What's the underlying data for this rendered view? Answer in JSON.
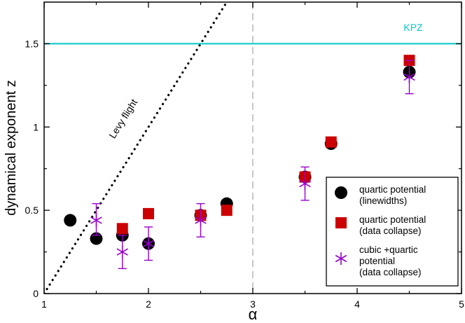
{
  "chart_data": {
    "type": "scatter",
    "title": "",
    "xlabel": "α",
    "ylabel": "dynamical exponent z",
    "xlim": [
      1,
      5
    ],
    "ylim": [
      0,
      1.75
    ],
    "x_ticks": [
      1,
      2,
      3,
      4,
      5
    ],
    "x_tick_labels": [
      "1",
      "2",
      "3",
      "4",
      "5"
    ],
    "y_ticks": [
      0,
      0.5,
      1,
      1.5
    ],
    "y_tick_labels": [
      "0",
      "0.5",
      "1",
      "1.5"
    ],
    "grid": false,
    "legend_position": "bottom-right",
    "reference_lines": {
      "kpz": {
        "label": "KPZ",
        "y": 1.5,
        "color": "#00c8c8"
      },
      "critical": {
        "x": 3,
        "color": "#c8c8c8"
      },
      "levy": {
        "label": "Levy flight",
        "slope": 1,
        "x_start": 1,
        "y_start": 0,
        "color": "#000000"
      }
    },
    "series": [
      {
        "name": "quartic potential (linewidths)",
        "legend_lines": [
          "quartic potential",
          "(linewidths)"
        ],
        "marker": "circle",
        "color": "#000000",
        "points": [
          {
            "x": 1.25,
            "y": 0.44
          },
          {
            "x": 1.5,
            "y": 0.33
          },
          {
            "x": 1.75,
            "y": 0.35
          },
          {
            "x": 2.0,
            "y": 0.3
          },
          {
            "x": 2.5,
            "y": 0.47
          },
          {
            "x": 2.75,
            "y": 0.54
          },
          {
            "x": 3.5,
            "y": 0.7
          },
          {
            "x": 3.75,
            "y": 0.9
          },
          {
            "x": 4.5,
            "y": 1.33
          }
        ]
      },
      {
        "name": "quartic potential (data collapse)",
        "legend_lines": [
          "quartic potential",
          "(data collapse)"
        ],
        "marker": "square",
        "color": "#cc0000",
        "points": [
          {
            "x": 1.75,
            "y": 0.39
          },
          {
            "x": 2.0,
            "y": 0.48
          },
          {
            "x": 2.5,
            "y": 0.47
          },
          {
            "x": 2.75,
            "y": 0.5
          },
          {
            "x": 3.5,
            "y": 0.7
          },
          {
            "x": 3.75,
            "y": 0.91
          },
          {
            "x": 4.5,
            "y": 1.4
          }
        ]
      },
      {
        "name": "cubic +quartic potential (data collapse)",
        "legend_lines": [
          "cubic +quartic",
          "potential",
          "(data collapse)"
        ],
        "marker": "asterisk",
        "color": "#9900cc",
        "points": [
          {
            "x": 1.5,
            "y": 0.44,
            "yerr_low": 0.35,
            "yerr_high": 0.54
          },
          {
            "x": 1.75,
            "y": 0.25,
            "yerr_low": 0.15,
            "yerr_high": 0.35
          },
          {
            "x": 2.0,
            "y": 0.3,
            "yerr_low": 0.2,
            "yerr_high": 0.4
          },
          {
            "x": 2.5,
            "y": 0.44,
            "yerr_low": 0.34,
            "yerr_high": 0.54
          },
          {
            "x": 3.5,
            "y": 0.66,
            "yerr_low": 0.56,
            "yerr_high": 0.76
          },
          {
            "x": 4.5,
            "y": 1.3,
            "yerr_low": 1.2,
            "yerr_high": 1.4
          }
        ]
      }
    ]
  }
}
